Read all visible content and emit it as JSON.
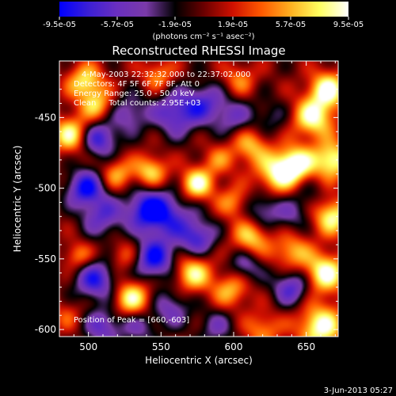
{
  "chart_data": {
    "type": "heatmap",
    "title": "Reconstructed RHESSI Image",
    "xlabel": "Heliocentric X (arcsec)",
    "ylabel": "Heliocentric Y (arcsec)",
    "xlim": [
      480,
      672
    ],
    "ylim": [
      -605,
      -410
    ],
    "x_ticks": [
      "500",
      "550",
      "600",
      "650"
    ],
    "x_tick_values": [
      500,
      550,
      600,
      650
    ],
    "y_ticks": [
      "-450",
      "-500",
      "-550",
      "-600"
    ],
    "y_tick_values": [
      -450,
      -500,
      -550,
      -600
    ],
    "colorbar": {
      "range": [
        -9.5e-05,
        9.5e-05
      ],
      "tick_labels": [
        "-9.5e-05",
        "-5.7e-05",
        "-1.9e-05",
        "1.9e-05",
        "5.7e-05",
        "9.5e-05"
      ],
      "tick_values": [
        -9.5e-05,
        -5.7e-05,
        -1.9e-05,
        1.9e-05,
        5.7e-05,
        9.5e-05
      ],
      "unit_label": "(photons cm⁻² s⁻¹ asec⁻²)",
      "colors": [
        "#0000ff",
        "#3b1fd6",
        "#6a2fc0",
        "#7a3aa8",
        "#000000",
        "#6a0000",
        "#d01000",
        "#ff5a00",
        "#ffb020",
        "#ffff60",
        "#ffffff"
      ]
    },
    "annotations": [
      "4-May-2003 22:32:32.000 to 22:37:02.000",
      "Detectors: 4F 5F 6F 7F 8F, Att 0",
      "Energy Range: 25.0 - 50.0 keV",
      "Clean     Total counts: 2.95E+03",
      "Position of Peak = [660,-603]"
    ],
    "peak": {
      "x": 660,
      "y": -603
    },
    "sources": [
      {
        "x": 498,
        "y": -425,
        "value": 7.5e-05,
        "s": 9
      },
      {
        "x": 548,
        "y": -420,
        "value": 5e-05,
        "s": 8
      },
      {
        "x": 604,
        "y": -423,
        "value": 4.5e-05,
        "s": 8
      },
      {
        "x": 506,
        "y": -442,
        "value": 6e-05,
        "s": 8
      },
      {
        "x": 488,
        "y": -462,
        "value": 8.5e-05,
        "s": 9
      },
      {
        "x": 520,
        "y": -490,
        "value": 5.5e-05,
        "s": 8
      },
      {
        "x": 543,
        "y": -488,
        "value": 7e-05,
        "s": 8
      },
      {
        "x": 575,
        "y": -497,
        "value": 9e-05,
        "s": 8
      },
      {
        "x": 590,
        "y": -480,
        "value": 4e-05,
        "s": 8
      },
      {
        "x": 612,
        "y": -470,
        "value": 6e-05,
        "s": 9
      },
      {
        "x": 630,
        "y": -490,
        "value": 8e-05,
        "s": 10
      },
      {
        "x": 643,
        "y": -483,
        "value": 9.2e-05,
        "s": 9
      },
      {
        "x": 655,
        "y": -450,
        "value": 9e-05,
        "s": 10
      },
      {
        "x": 665,
        "y": -430,
        "value": 9.3e-05,
        "s": 9
      },
      {
        "x": 668,
        "y": -480,
        "value": 9.2e-05,
        "s": 9
      },
      {
        "x": 668,
        "y": -520,
        "value": 8.5e-05,
        "s": 9
      },
      {
        "x": 663,
        "y": -560,
        "value": 9.5e-05,
        "s": 10
      },
      {
        "x": 660,
        "y": -598,
        "value": 9.5e-05,
        "s": 11
      },
      {
        "x": 640,
        "y": -545,
        "value": 6e-05,
        "s": 9
      },
      {
        "x": 612,
        "y": -535,
        "value": 7e-05,
        "s": 9
      },
      {
        "x": 600,
        "y": -510,
        "value": 5e-05,
        "s": 8
      },
      {
        "x": 572,
        "y": -560,
        "value": 8e-05,
        "s": 9
      },
      {
        "x": 598,
        "y": -572,
        "value": 6e-05,
        "s": 9
      },
      {
        "x": 530,
        "y": -578,
        "value": 8.5e-05,
        "s": 9
      },
      {
        "x": 525,
        "y": -548,
        "value": 4e-05,
        "s": 8
      },
      {
        "x": 493,
        "y": -548,
        "value": 5e-05,
        "s": 7
      },
      {
        "x": 620,
        "y": -600,
        "value": 5e-05,
        "s": 9
      },
      {
        "x": 485,
        "y": -590,
        "value": 3e-05,
        "s": 8
      },
      {
        "x": 507,
        "y": -465,
        "value": -8e-05,
        "s": 9
      },
      {
        "x": 528,
        "y": -447,
        "value": -5e-05,
        "s": 9
      },
      {
        "x": 560,
        "y": -447,
        "value": -7e-05,
        "s": 11
      },
      {
        "x": 580,
        "y": -440,
        "value": -6e-05,
        "s": 10
      },
      {
        "x": 555,
        "y": -520,
        "value": -6.5e-05,
        "s": 12
      },
      {
        "x": 540,
        "y": -515,
        "value": -8e-05,
        "s": 10
      },
      {
        "x": 510,
        "y": -520,
        "value": -6e-05,
        "s": 10
      },
      {
        "x": 498,
        "y": -500,
        "value": -9e-05,
        "s": 9
      },
      {
        "x": 545,
        "y": -550,
        "value": -9e-05,
        "s": 10
      },
      {
        "x": 505,
        "y": -565,
        "value": -8e-05,
        "s": 10
      },
      {
        "x": 575,
        "y": -535,
        "value": -7e-05,
        "s": 9
      },
      {
        "x": 620,
        "y": -515,
        "value": -5e-05,
        "s": 9
      },
      {
        "x": 640,
        "y": -520,
        "value": -3.5e-05,
        "s": 8
      },
      {
        "x": 640,
        "y": -570,
        "value": -7e-05,
        "s": 9
      },
      {
        "x": 608,
        "y": -555,
        "value": -5e-05,
        "s": 8
      },
      {
        "x": 557,
        "y": -585,
        "value": -5e-05,
        "s": 9
      },
      {
        "x": 535,
        "y": -598,
        "value": -4e-05,
        "s": 9
      },
      {
        "x": 510,
        "y": -598,
        "value": -6e-05,
        "s": 9
      },
      {
        "x": 588,
        "y": -598,
        "value": -4e-05,
        "s": 9
      },
      {
        "x": 625,
        "y": -450,
        "value": -3e-05,
        "s": 9
      },
      {
        "x": 600,
        "y": -450,
        "value": -4.5e-05,
        "s": 9
      },
      {
        "x": 650,
        "y": -505,
        "value": -2.5e-05,
        "s": 8
      }
    ]
  },
  "footer": {
    "timestamp": "3-Jun-2013 05:27"
  }
}
